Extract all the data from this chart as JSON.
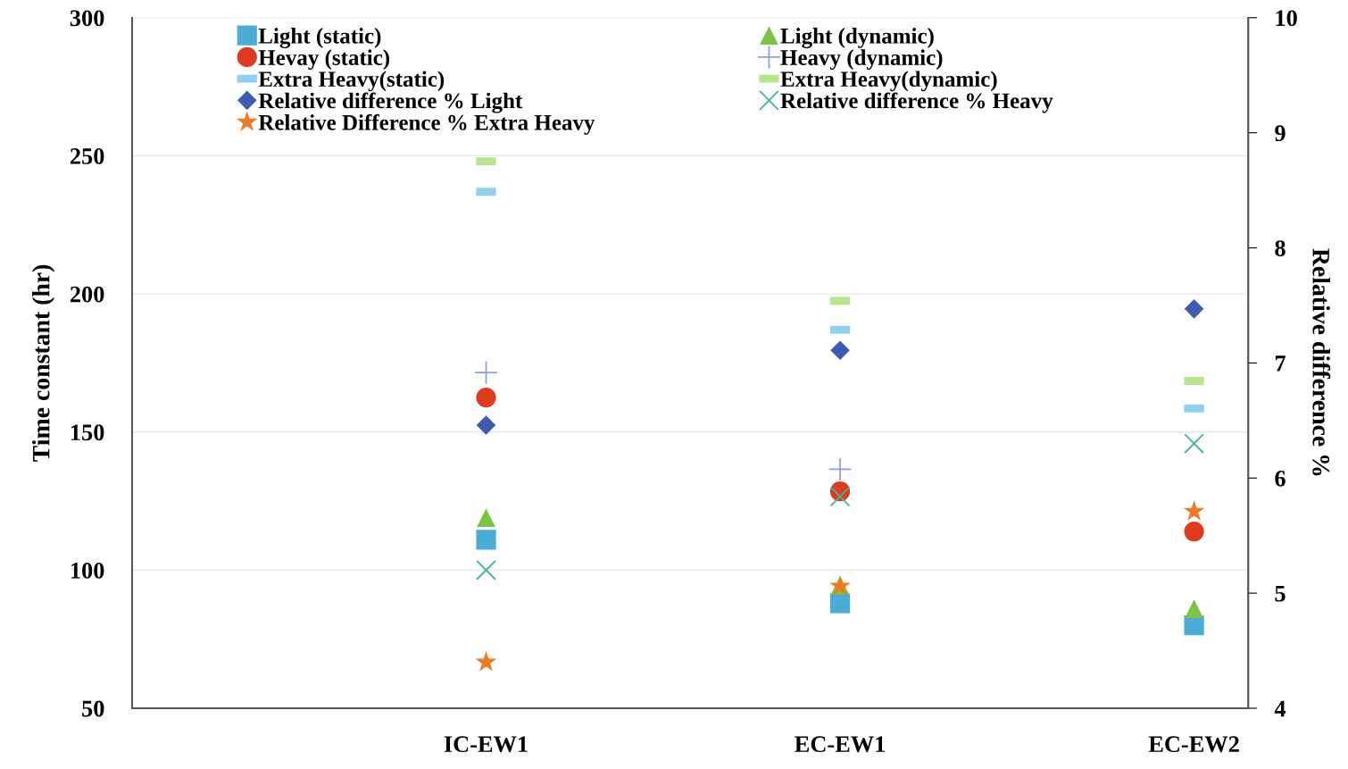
{
  "chart_data": {
    "type": "scatter",
    "categories": [
      "IC-EW1",
      "EC-EW1",
      "EC-EW2"
    ],
    "ylabel": "Time constant (hr)",
    "y2label": "Relative difference %",
    "ylim": [
      50,
      300
    ],
    "yticks": [
      50,
      100,
      150,
      200,
      250,
      300
    ],
    "y2lim": [
      4,
      10
    ],
    "y2ticks": [
      4,
      5,
      6,
      7,
      8,
      9,
      10
    ],
    "grid": "y",
    "legend": "top left",
    "series": [
      {
        "name": "Light (static)",
        "color": "#4bacd6",
        "marker": "square",
        "values": [
          111,
          88,
          80
        ]
      },
      {
        "name": "Light (dynamic)",
        "color": "#7cc443",
        "marker": "triangle",
        "values": [
          119,
          94.5,
          86
        ]
      },
      {
        "name": "Hevay (static)",
        "color": "#e03a1e",
        "marker": "circle",
        "values": [
          162.5,
          128.5,
          114
        ]
      },
      {
        "name": "Heavy (dynamic)",
        "color": "#8f9fd9",
        "marker": "cross",
        "values": [
          171.5,
          136.5,
          null
        ]
      },
      {
        "name": "Extra Heavy(static)",
        "color": "#8fd0f0",
        "values": [
          237,
          187,
          158.5
        ]
      },
      {
        "name": "Extra Heavy(dynamic)",
        "color": "#b6e68c",
        "values": [
          248,
          197.5,
          168.5
        ]
      },
      {
        "name": "Relative difference % Light",
        "color": "#3d5bb0",
        "marker": "diamond",
        "axis": "y2",
        "values": [
          6.46,
          7.11,
          7.47
        ]
      },
      {
        "name": "Relative difference % Heavy",
        "color": "#3fb59a",
        "marker": "x",
        "axis": "y2",
        "values": [
          5.2,
          5.84,
          6.3
        ]
      },
      {
        "name": "Relative Difference % Extra Heavy",
        "color": "#f07a24",
        "marker": "star",
        "axis": "y2",
        "values": [
          4.4,
          5.06,
          5.71
        ]
      }
    ]
  }
}
